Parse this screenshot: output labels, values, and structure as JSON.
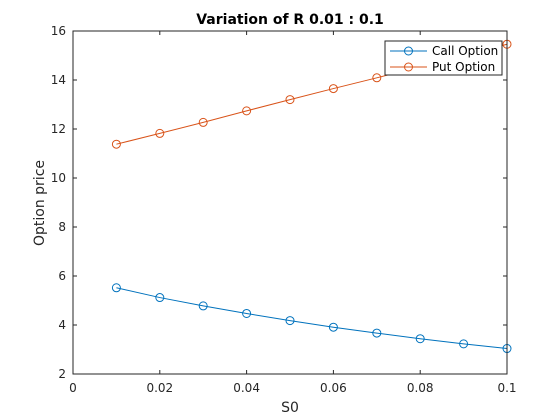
{
  "chart_data": {
    "type": "line",
    "title": "Variation of R 0.01 : 0.1",
    "xlabel": "S0",
    "ylabel": "Option price",
    "xlim": [
      0,
      0.1
    ],
    "ylim": [
      2,
      16
    ],
    "x_ticks": [
      0,
      0.02,
      0.04,
      0.06,
      0.08,
      0.1
    ],
    "x_tick_labels": [
      "0",
      "0.02",
      "0.04",
      "0.06",
      "0.08",
      "0.1"
    ],
    "y_ticks": [
      2,
      4,
      6,
      8,
      10,
      12,
      14,
      16
    ],
    "y_tick_labels": [
      "2",
      "4",
      "6",
      "8",
      "10",
      "12",
      "14",
      "16"
    ],
    "grid": false,
    "legend_position": "top-right",
    "x": [
      0.01,
      0.02,
      0.03,
      0.04,
      0.05,
      0.06,
      0.07,
      0.08,
      0.09,
      0.1
    ],
    "series": [
      {
        "name": "Call Option",
        "color": "#0072BD",
        "marker": "circle",
        "values": [
          5.52,
          5.12,
          4.78,
          4.47,
          4.18,
          3.91,
          3.67,
          3.44,
          3.23,
          3.04
        ]
      },
      {
        "name": "Put Option",
        "color": "#D95319",
        "marker": "circle",
        "values": [
          11.38,
          11.82,
          12.27,
          12.74,
          13.2,
          13.65,
          14.09,
          14.54,
          14.98,
          15.46
        ]
      }
    ]
  }
}
